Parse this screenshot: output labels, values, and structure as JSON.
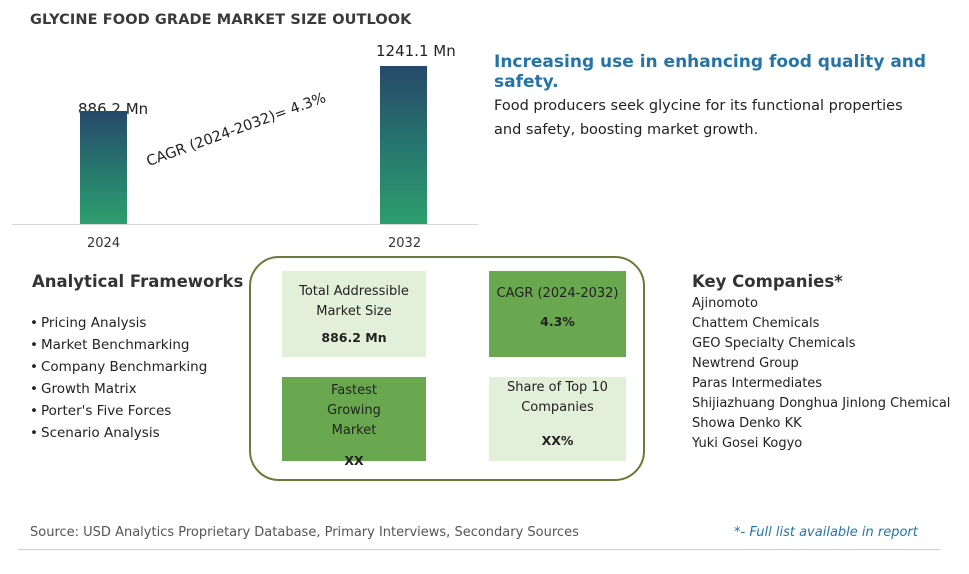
{
  "title": "GLYCINE FOOD GRADE MARKET SIZE OUTLOOK",
  "chart_data": {
    "type": "bar",
    "categories": [
      "2024",
      "2032"
    ],
    "values": [
      886.2,
      1241.1
    ],
    "value_labels": [
      "886.2 Mn",
      "1241.1 Mn"
    ],
    "annotation": "CAGR (2024-2032)=  4.3%",
    "colors": [
      "#2e9e6d",
      "#27486a"
    ]
  },
  "headline": "Increasing use in enhancing food quality and safety.",
  "description": "Food producers seek glycine for its functional properties and safety, boosting market growth.",
  "frameworks": {
    "title": "Analytical Frameworks",
    "bullet": "•",
    "items": [
      "Pricing Analysis",
      "Market Benchmarking",
      "Company Benchmarking",
      "Growth Matrix",
      "Porter's Five Forces",
      "Scenario Analysis"
    ]
  },
  "stats": {
    "tam": {
      "label": "Total Addressible Market Size",
      "value": "886.2 Mn"
    },
    "cagr": {
      "label": "CAGR (2024-2032)",
      "value": "4.3%"
    },
    "fastest": {
      "label": "Fastest Growing Market",
      "value": "XX"
    },
    "share": {
      "label": "Share of Top 10 Companies",
      "value": "XX%"
    }
  },
  "companies": {
    "title": "Key Companies*",
    "items": [
      "Ajinomoto",
      "Chattem Chemicals",
      "GEO Specialty Chemicals",
      "Newtrend Group",
      "Paras Intermediates",
      "Shijiazhuang Donghua Jinlong Chemical",
      "Showa Denko KK",
      "Yuki Gosei Kogyo"
    ]
  },
  "footer": {
    "source": "Source: USD Analytics Proprietary Database, Primary Interviews, Secondary Sources",
    "note": "*- Full list available in report"
  }
}
